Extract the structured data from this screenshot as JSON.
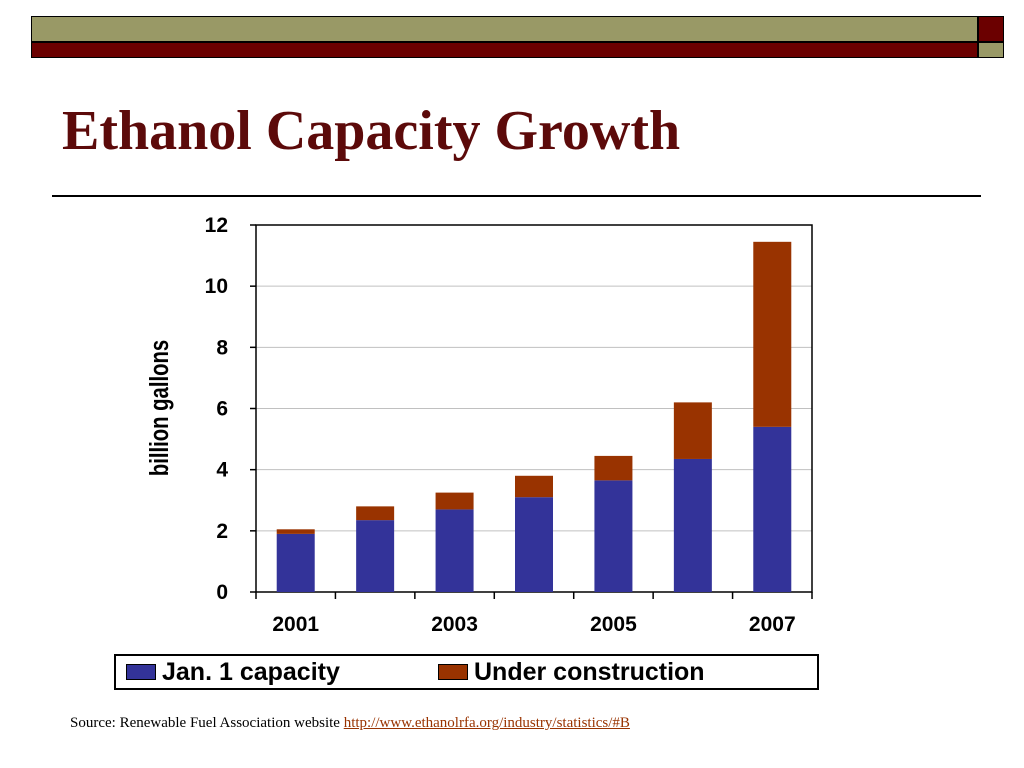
{
  "slide": {
    "title": "Ethanol Capacity Growth",
    "source_prefix": "Source: Renewable Fuel Association website",
    "source_link": "http://www.ethanolrfa.org/industry/statistics/#B"
  },
  "colors": {
    "title": "#5c0a0a",
    "olive": "#999966",
    "maroon": "#6b0000",
    "link": "#993300",
    "series_capacity": "#333399",
    "series_construction": "#993300",
    "grid": "#c0c0c0"
  },
  "chart_data": {
    "type": "bar",
    "stacked": true,
    "categories": [
      "2001",
      "2002",
      "2003",
      "2004",
      "2005",
      "2006",
      "2007"
    ],
    "tick_labels": [
      "2001",
      "",
      "2003",
      "",
      "2005",
      "",
      "2007"
    ],
    "series": [
      {
        "name": "Jan. 1 capacity",
        "values": [
          1.9,
          2.35,
          2.7,
          3.1,
          3.65,
          4.35,
          5.4
        ]
      },
      {
        "name": "Under construction",
        "values": [
          0.15,
          0.45,
          0.55,
          0.7,
          0.8,
          1.85,
          6.05
        ]
      }
    ],
    "ylabel": "billion gallons",
    "xlabel": "",
    "ylim": [
      0,
      12
    ],
    "yticks": [
      0,
      2,
      4,
      6,
      8,
      10,
      12
    ],
    "grid": true,
    "legend_position": "bottom"
  }
}
